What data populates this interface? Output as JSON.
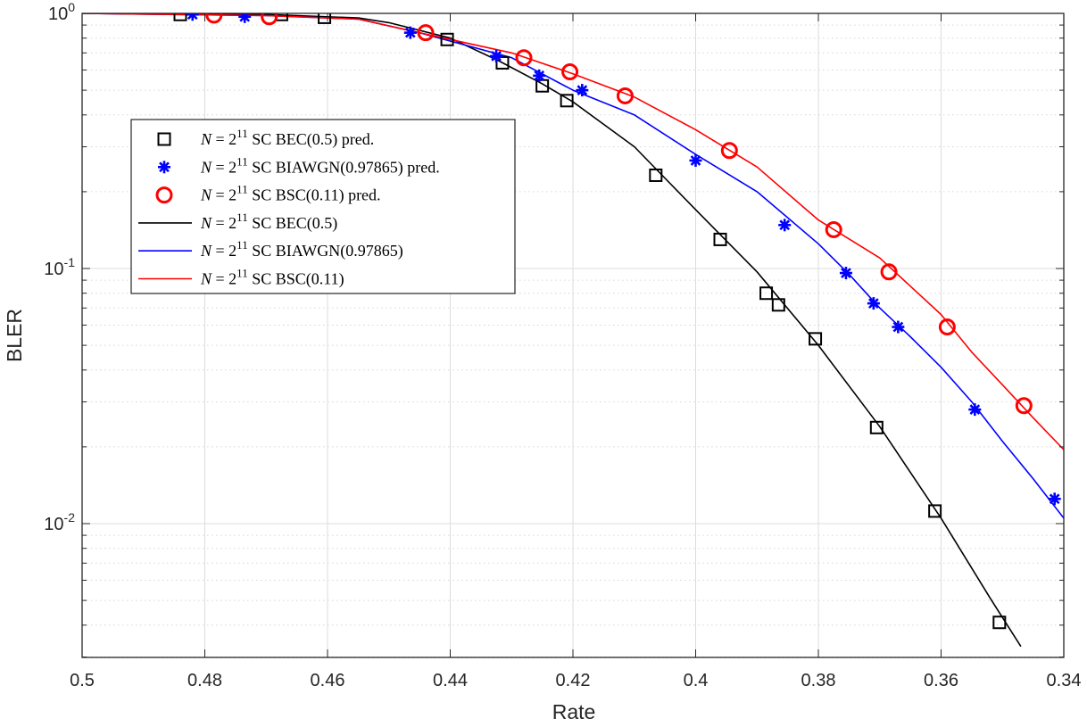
{
  "chart_data": {
    "type": "line",
    "xlabel": "Rate",
    "ylabel": "BLER",
    "x_reversed": true,
    "xlim": [
      0.34,
      0.5
    ],
    "ylim": [
      0.0035,
      1
    ],
    "yscale": "log",
    "grid": true,
    "minor_grid": true,
    "x_ticks": [
      0.5,
      0.48,
      0.46,
      0.44,
      0.42,
      0.4,
      0.38,
      0.36,
      0.34
    ],
    "x_tick_labels": [
      "0.5",
      "0.48",
      "0.46",
      "0.44",
      "0.42",
      "0.4",
      "0.38",
      "0.36",
      "0.34"
    ],
    "y_ticks": [
      {
        "value": 1,
        "base": "10",
        "exp": "0"
      },
      {
        "value": 0.1,
        "base": "10",
        "exp": "-1"
      },
      {
        "value": 0.01,
        "base": "10",
        "exp": "-2"
      }
    ],
    "legend_position": "upper-left",
    "series": [
      {
        "name": "pred_bec",
        "legend_prefix": "N",
        "legend_eq": " = 2",
        "legend_exp": "11",
        "legend_rest": " SC BEC(0.5) pred.",
        "kind": "markers",
        "marker": "square",
        "color": "#000000",
        "points": [
          [
            0.484,
            0.99
          ],
          [
            0.4675,
            0.99
          ],
          [
            0.4605,
            0.965
          ],
          [
            0.4405,
            0.79
          ],
          [
            0.4315,
            0.64
          ],
          [
            0.425,
            0.52
          ],
          [
            0.421,
            0.455
          ],
          [
            0.4065,
            0.232
          ],
          [
            0.396,
            0.13
          ],
          [
            0.3885,
            0.08
          ],
          [
            0.3865,
            0.072
          ],
          [
            0.3805,
            0.053
          ],
          [
            0.3705,
            0.0238
          ],
          [
            0.361,
            0.0112
          ],
          [
            0.3505,
            0.0041
          ]
        ]
      },
      {
        "name": "pred_biawgn",
        "legend_prefix": "N",
        "legend_eq": " = 2",
        "legend_exp": "11",
        "legend_rest": " SC BIAWGN(0.97865) pred.",
        "kind": "markers",
        "marker": "asterisk",
        "color": "#0000ff",
        "points": [
          [
            0.482,
            0.99
          ],
          [
            0.4735,
            0.97
          ],
          [
            0.4465,
            0.84
          ],
          [
            0.4325,
            0.68
          ],
          [
            0.4255,
            0.57
          ],
          [
            0.4185,
            0.5
          ],
          [
            0.4,
            0.265
          ],
          [
            0.3855,
            0.148
          ],
          [
            0.3755,
            0.096
          ],
          [
            0.371,
            0.073
          ],
          [
            0.367,
            0.059
          ],
          [
            0.3545,
            0.028
          ],
          [
            0.3415,
            0.0125
          ]
        ]
      },
      {
        "name": "pred_bsc",
        "legend_prefix": "N",
        "legend_eq": " = 2",
        "legend_exp": "11",
        "legend_rest": " SC BSC(0.11) pred.",
        "kind": "markers",
        "marker": "circle",
        "color": "#ff0000",
        "points": [
          [
            0.4785,
            0.985
          ],
          [
            0.4695,
            0.97
          ],
          [
            0.444,
            0.84
          ],
          [
            0.428,
            0.67
          ],
          [
            0.4205,
            0.59
          ],
          [
            0.4115,
            0.475
          ],
          [
            0.3945,
            0.29
          ],
          [
            0.3775,
            0.142
          ],
          [
            0.3685,
            0.097
          ],
          [
            0.359,
            0.059
          ],
          [
            0.3465,
            0.029
          ]
        ]
      },
      {
        "name": "sim_bec",
        "legend_prefix": "N",
        "legend_eq": " = 2",
        "legend_exp": "11",
        "legend_rest": " SC BEC(0.5)",
        "kind": "line",
        "color": "#000000",
        "points": [
          [
            0.5,
            1.0
          ],
          [
            0.47,
            0.99
          ],
          [
            0.455,
            0.96
          ],
          [
            0.45,
            0.92
          ],
          [
            0.44,
            0.8
          ],
          [
            0.432,
            0.65
          ],
          [
            0.425,
            0.53
          ],
          [
            0.42,
            0.45
          ],
          [
            0.41,
            0.3
          ],
          [
            0.4,
            0.17
          ],
          [
            0.39,
            0.097
          ],
          [
            0.38,
            0.05
          ],
          [
            0.37,
            0.024
          ],
          [
            0.36,
            0.0105
          ],
          [
            0.352,
            0.0051
          ],
          [
            0.347,
            0.0033
          ]
        ]
      },
      {
        "name": "sim_biawgn",
        "legend_prefix": "N",
        "legend_eq": " = 2",
        "legend_exp": "11",
        "legend_rest": " SC BIAWGN(0.97865)",
        "kind": "line",
        "color": "#0000ff",
        "points": [
          [
            0.5,
            1.0
          ],
          [
            0.47,
            0.98
          ],
          [
            0.455,
            0.95
          ],
          [
            0.445,
            0.84
          ],
          [
            0.43,
            0.67
          ],
          [
            0.42,
            0.5
          ],
          [
            0.41,
            0.4
          ],
          [
            0.4,
            0.28
          ],
          [
            0.39,
            0.2
          ],
          [
            0.38,
            0.125
          ],
          [
            0.375,
            0.095
          ],
          [
            0.37,
            0.07
          ],
          [
            0.365,
            0.054
          ],
          [
            0.36,
            0.041
          ],
          [
            0.355,
            0.03
          ],
          [
            0.35,
            0.021
          ],
          [
            0.345,
            0.015
          ],
          [
            0.34,
            0.0105
          ]
        ]
      },
      {
        "name": "sim_bsc",
        "legend_prefix": "N",
        "legend_eq": " = 2",
        "legend_exp": "11",
        "legend_rest": " SC BSC(0.11)",
        "kind": "line",
        "color": "#ff0000",
        "points": [
          [
            0.5,
            1.0
          ],
          [
            0.47,
            0.98
          ],
          [
            0.455,
            0.95
          ],
          [
            0.445,
            0.84
          ],
          [
            0.43,
            0.7
          ],
          [
            0.42,
            0.58
          ],
          [
            0.41,
            0.47
          ],
          [
            0.4,
            0.35
          ],
          [
            0.39,
            0.25
          ],
          [
            0.38,
            0.155
          ],
          [
            0.37,
            0.11
          ],
          [
            0.36,
            0.066
          ],
          [
            0.355,
            0.047
          ],
          [
            0.35,
            0.035
          ],
          [
            0.345,
            0.026
          ],
          [
            0.34,
            0.0195
          ]
        ]
      }
    ]
  }
}
